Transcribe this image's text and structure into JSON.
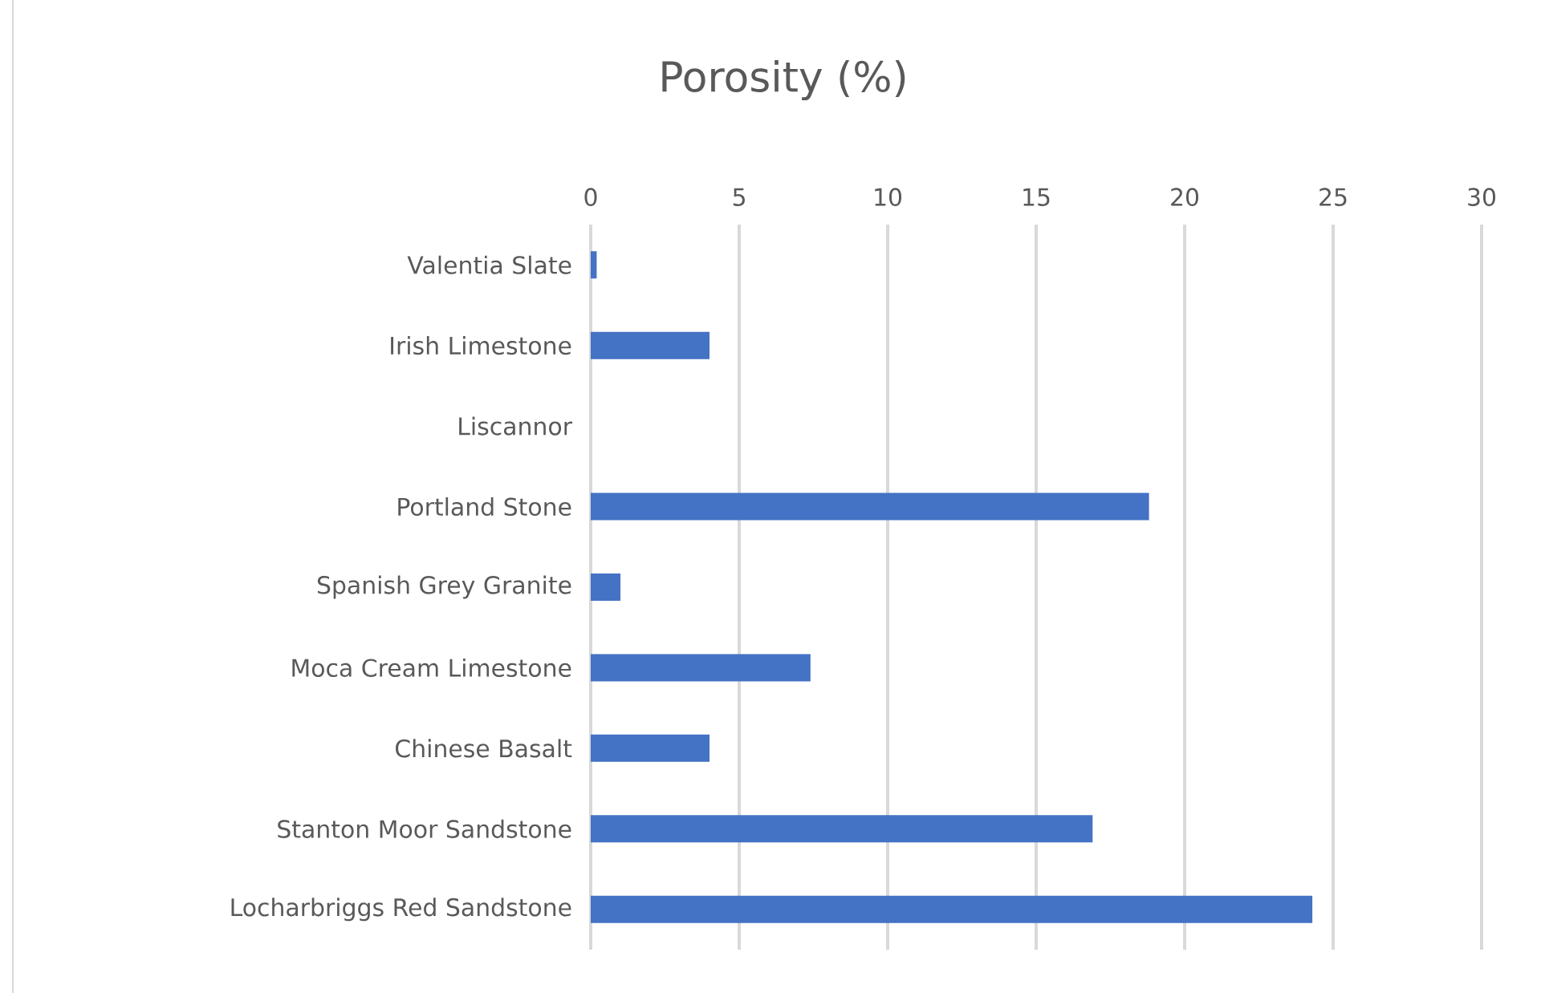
{
  "chart_data": {
    "type": "bar",
    "orientation": "horizontal",
    "title": "Porosity (%)",
    "categories": [
      "Valentia Slate",
      "Irish Limestone",
      "Liscannor",
      "Portland Stone",
      "Spanish Grey Granite",
      "Moca Cream Limestone",
      "Chinese Basalt",
      "Stanton Moor Sandstone",
      "Locharbriggs Red Sandstone"
    ],
    "values": [
      0.2,
      4.0,
      0,
      18.8,
      1.0,
      7.4,
      4.0,
      16.9,
      24.3
    ],
    "color": "#4472c4",
    "xlim": [
      0,
      30
    ],
    "xticks": [
      0,
      5,
      10,
      15,
      20,
      25,
      30
    ],
    "grid": "x"
  }
}
